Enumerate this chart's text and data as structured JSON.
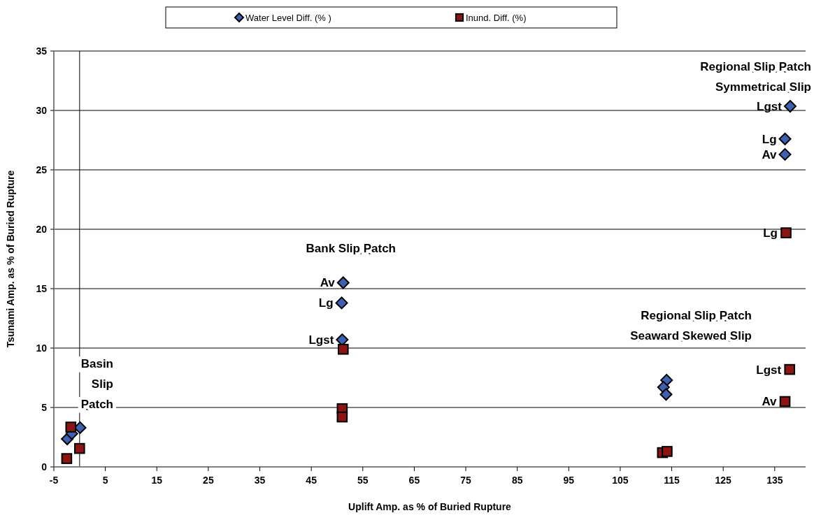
{
  "chart_data": {
    "type": "scatter",
    "xlabel": "Uplift Amp. as % of Buried Rupture",
    "ylabel": "Tsunami Amp. as % of Buried Rupture",
    "xlim": [
      -5,
      141
    ],
    "xticks": [
      -5,
      5,
      15,
      25,
      35,
      45,
      55,
      65,
      75,
      85,
      95,
      105,
      115,
      125,
      135
    ],
    "ylim": [
      0,
      35
    ],
    "yticks": [
      0,
      5,
      10,
      15,
      20,
      25,
      30,
      35
    ],
    "grid": "y",
    "legend": "top",
    "ref_lines": [
      {
        "axis": "x",
        "value": 0
      }
    ],
    "series": [
      {
        "name": "Water Level Diff. (% )",
        "color": "#3f5fb0",
        "marker": "diamond",
        "x": [
          -2.4,
          -1.5,
          0.1,
          51.2,
          50.9,
          51.0,
          114,
          113.4,
          113.9,
          138,
          137,
          137
        ],
        "values": [
          2.35,
          2.8,
          3.3,
          15.5,
          13.8,
          10.7,
          7.3,
          6.7,
          6.1,
          30.35,
          27.6,
          26.3
        ]
      },
      {
        "name": "Inund. Diff. (%)",
        "color": "#8b1414",
        "marker": "square",
        "x": [
          -1.7,
          0,
          -2.5,
          51.2,
          51.0,
          51.0,
          113.2,
          114.1,
          137.2,
          137.9,
          137
        ],
        "values": [
          3.35,
          1.55,
          0.7,
          9.9,
          4.9,
          4.2,
          1.2,
          1.3,
          19.7,
          8.2,
          5.5
        ]
      }
    ],
    "annotations": [
      "Basin\nSlip\nPatch",
      "Bank Slip Patch",
      {
        "text": "Av",
        "x": 51.2,
        "y": 15.5
      },
      {
        "text": "Lg",
        "x": 50.9,
        "y": 13.8
      },
      {
        "text": "Lgst",
        "x": 51.0,
        "y": 10.7
      },
      "Regional Slip Patch\nSeaward Skewed Slip",
      "Regional Slip Patch\nSymmetrical Slip",
      {
        "text": "Lgst",
        "x": 138,
        "y": 30.35
      },
      {
        "text": "Lg",
        "x": 137,
        "y": 27.6
      },
      {
        "text": "Av",
        "x": 137,
        "y": 26.3
      },
      {
        "text": "Lg",
        "x": 137.2,
        "y": 19.7
      },
      {
        "text": "Lgst",
        "x": 137.9,
        "y": 8.2
      },
      {
        "text": "Av",
        "x": 137,
        "y": 5.5
      }
    ]
  }
}
